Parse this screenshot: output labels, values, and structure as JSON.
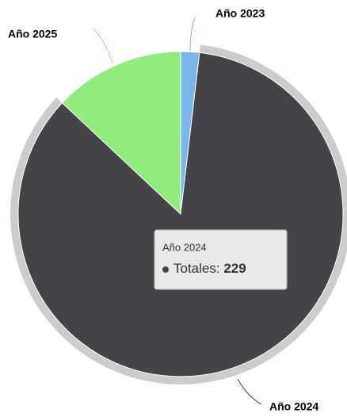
{
  "chart_data": {
    "type": "pie",
    "categories": [
      "Año 2023",
      "Año 2024",
      "Año 2025"
    ],
    "values": [
      5,
      229,
      35
    ],
    "colors": [
      "#7cb5ec",
      "#434348",
      "#90ed7d"
    ],
    "series_name": "Totales:",
    "tooltip_index": 1
  }
}
